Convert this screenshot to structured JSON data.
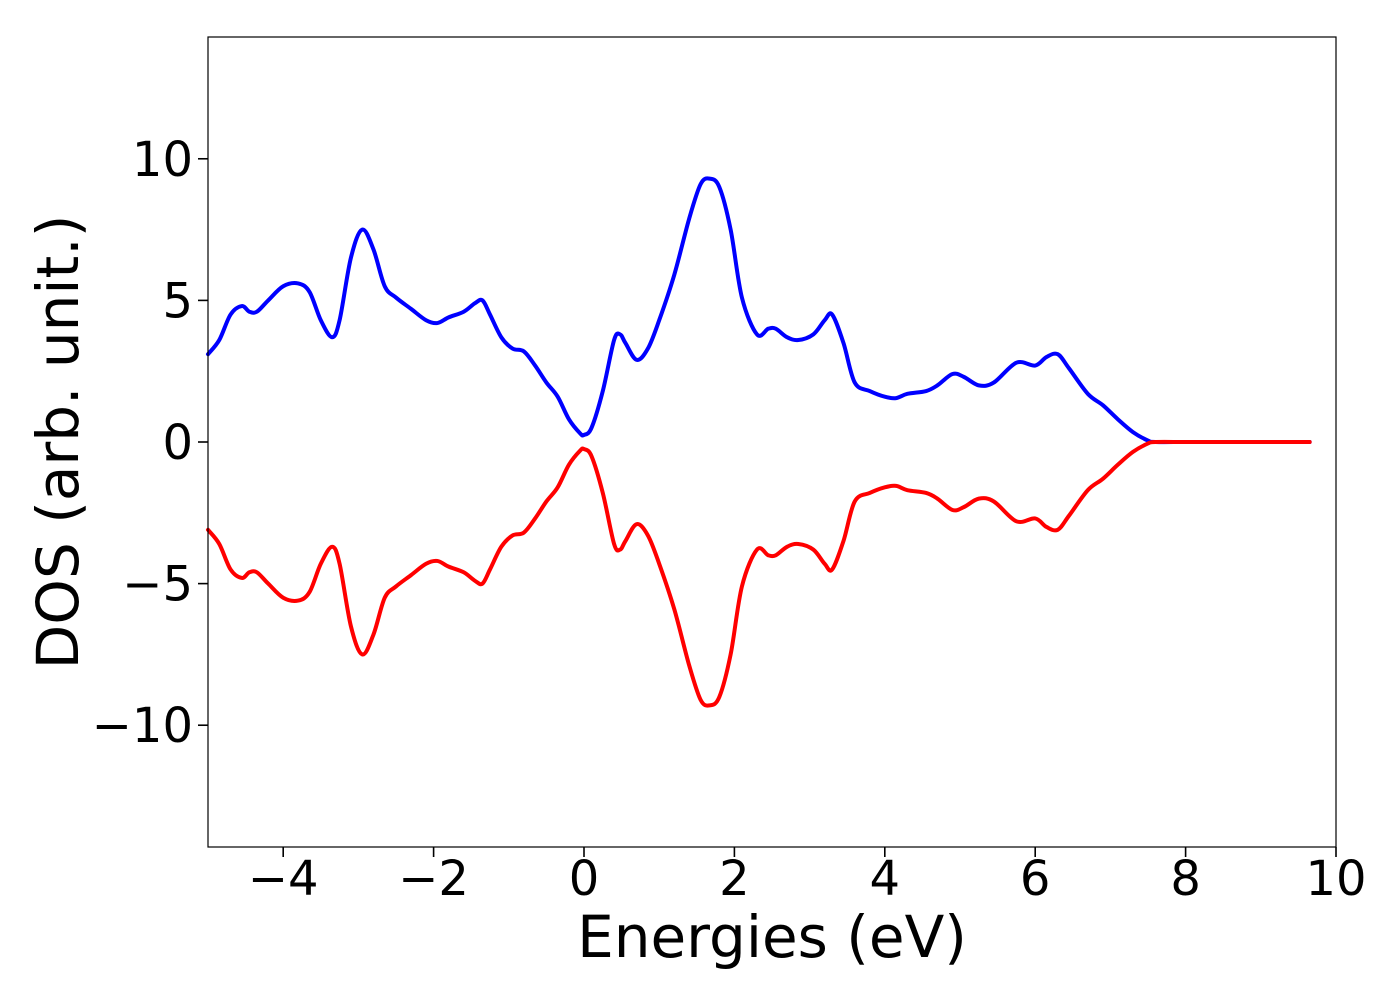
{
  "chart_data": {
    "type": "line",
    "title": "",
    "xlabel": "Energies (eV)",
    "ylabel": "DOS (arb. unit.)",
    "xlim": [
      -5,
      10
    ],
    "ylim": [
      -14.3,
      14.3
    ],
    "grid": false,
    "legend": "none",
    "x_ticks": [
      {
        "value": -4,
        "label": "−4"
      },
      {
        "value": -2,
        "label": "−2"
      },
      {
        "value": 0,
        "label": "0"
      },
      {
        "value": 2,
        "label": "2"
      },
      {
        "value": 4,
        "label": "4"
      },
      {
        "value": 6,
        "label": "6"
      },
      {
        "value": 8,
        "label": "8"
      },
      {
        "value": 10,
        "label": "10"
      }
    ],
    "y_ticks": [
      {
        "value": 10,
        "label": "10"
      },
      {
        "value": 5,
        "label": "5"
      },
      {
        "value": 0,
        "label": "0"
      },
      {
        "value": -5,
        "label": "−5"
      },
      {
        "value": -10,
        "label": "−10"
      }
    ],
    "x": [
      -5.0,
      -4.85,
      -4.7,
      -4.55,
      -4.45,
      -4.35,
      -4.2,
      -4.0,
      -3.8,
      -3.65,
      -3.5,
      -3.35,
      -3.25,
      -3.1,
      -2.95,
      -2.8,
      -2.65,
      -2.5,
      -2.3,
      -2.1,
      -1.95,
      -1.8,
      -1.6,
      -1.45,
      -1.35,
      -1.25,
      -1.1,
      -0.95,
      -0.8,
      -0.65,
      -0.5,
      -0.35,
      -0.2,
      -0.05,
      0.0,
      0.1,
      0.25,
      0.4,
      0.48,
      0.55,
      0.7,
      0.85,
      1.0,
      1.2,
      1.4,
      1.55,
      1.67,
      1.8,
      1.95,
      2.1,
      2.3,
      2.45,
      2.55,
      2.7,
      2.85,
      3.05,
      3.2,
      3.3,
      3.45,
      3.6,
      3.8,
      4.0,
      4.15,
      4.3,
      4.55,
      4.7,
      4.9,
      5.05,
      5.25,
      5.45,
      5.75,
      6.0,
      6.15,
      6.3,
      6.45,
      6.7,
      6.9,
      7.1,
      7.3,
      7.5,
      7.6,
      8.0,
      8.5,
      9.0,
      9.65
    ],
    "series": [
      {
        "color": "#0000ff",
        "values": [
          3.1,
          3.6,
          4.5,
          4.8,
          4.6,
          4.6,
          5.0,
          5.5,
          5.6,
          5.3,
          4.3,
          3.7,
          4.3,
          6.5,
          7.5,
          6.8,
          5.5,
          5.1,
          4.7,
          4.3,
          4.2,
          4.4,
          4.6,
          4.9,
          5.0,
          4.5,
          3.7,
          3.3,
          3.2,
          2.7,
          2.1,
          1.6,
          0.8,
          0.3,
          0.25,
          0.5,
          1.8,
          3.6,
          3.8,
          3.5,
          2.9,
          3.3,
          4.3,
          5.9,
          7.9,
          9.1,
          9.3,
          9.0,
          7.5,
          5.1,
          3.8,
          4.0,
          4.0,
          3.7,
          3.6,
          3.8,
          4.3,
          4.5,
          3.5,
          2.1,
          1.8,
          1.6,
          1.55,
          1.7,
          1.8,
          2.0,
          2.4,
          2.3,
          2.0,
          2.1,
          2.8,
          2.7,
          3.0,
          3.1,
          2.6,
          1.7,
          1.3,
          0.8,
          0.35,
          0.05,
          0.0,
          0.0,
          0.0,
          0.0,
          0.0
        ]
      },
      {
        "color": "#ff0000",
        "values": [
          -3.1,
          -3.6,
          -4.5,
          -4.8,
          -4.6,
          -4.6,
          -5.0,
          -5.5,
          -5.6,
          -5.3,
          -4.3,
          -3.7,
          -4.3,
          -6.5,
          -7.5,
          -6.8,
          -5.5,
          -5.1,
          -4.7,
          -4.3,
          -4.2,
          -4.4,
          -4.6,
          -4.9,
          -5.0,
          -4.5,
          -3.7,
          -3.3,
          -3.2,
          -2.7,
          -2.1,
          -1.6,
          -0.8,
          -0.3,
          -0.25,
          -0.5,
          -1.8,
          -3.6,
          -3.8,
          -3.5,
          -2.9,
          -3.3,
          -4.3,
          -5.9,
          -7.9,
          -9.1,
          -9.3,
          -9.0,
          -7.5,
          -5.1,
          -3.8,
          -4.0,
          -4.0,
          -3.7,
          -3.6,
          -3.8,
          -4.3,
          -4.5,
          -3.5,
          -2.1,
          -1.8,
          -1.6,
          -1.55,
          -1.7,
          -1.8,
          -2.0,
          -2.4,
          -2.3,
          -2.0,
          -2.1,
          -2.8,
          -2.7,
          -3.0,
          -3.1,
          -2.6,
          -1.7,
          -1.3,
          -0.8,
          -0.35,
          -0.05,
          0.0,
          0.0,
          0.0,
          0.0,
          0.0
        ]
      }
    ]
  }
}
